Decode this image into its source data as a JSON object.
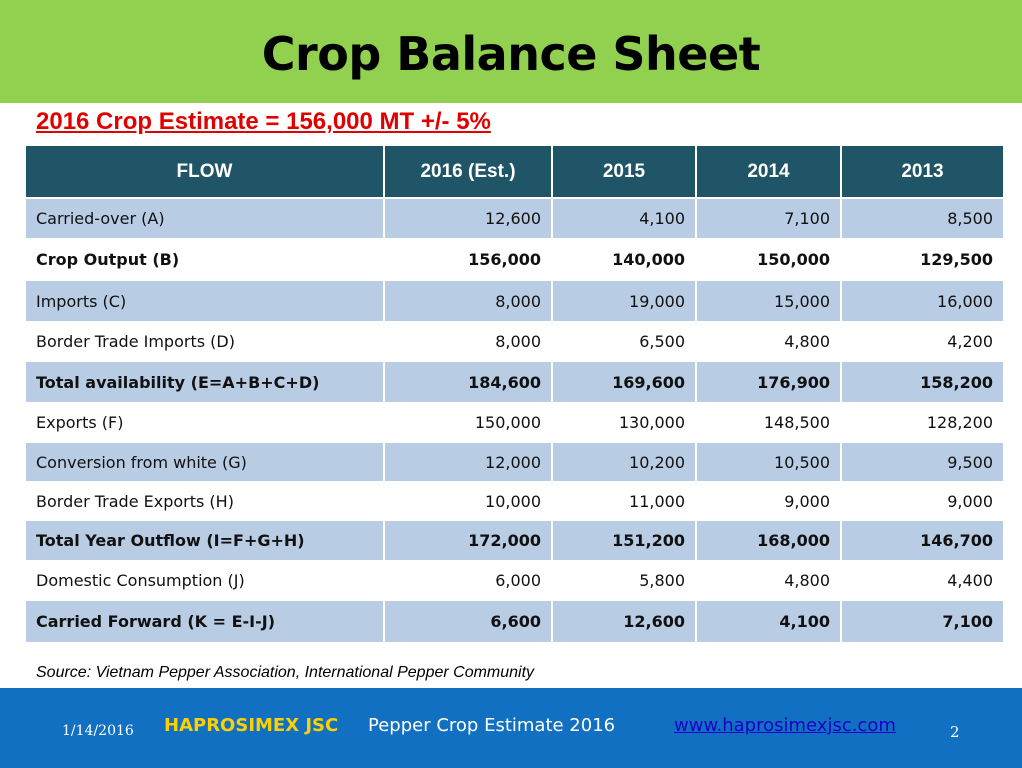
{
  "header": {
    "title": "Crop Balance Sheet"
  },
  "subtitle": "2016 Crop Estimate = 156,000 MT +/- 5%",
  "table": {
    "columns": [
      "FLOW",
      "2016 (Est.)",
      "2015",
      "2014",
      "2013"
    ],
    "rows": [
      {
        "label": "Carried-over   (A)",
        "values": [
          "12,600",
          "4,100",
          "7,100",
          "8,500"
        ],
        "bold": false,
        "shaded": true
      },
      {
        "label": "Crop Output  (B)",
        "values": [
          "156,000",
          "140,000",
          "150,000",
          "129,500"
        ],
        "bold": true,
        "shaded": false
      },
      {
        "label": "Imports (C)",
        "values": [
          "8,000",
          "19,000",
          "15,000",
          "16,000"
        ],
        "bold": false,
        "shaded": true
      },
      {
        "label": "Border Trade Imports (D)",
        "values": [
          "8,000",
          "6,500",
          "4,800",
          "4,200"
        ],
        "bold": false,
        "shaded": false
      },
      {
        "label": "Total availability (E=A+B+C+D)",
        "values": [
          "184,600",
          "169,600",
          "176,900",
          "158,200"
        ],
        "bold": true,
        "shaded": true
      },
      {
        "label": "Exports (F)",
        "values": [
          "150,000",
          "130,000",
          "148,500",
          "128,200"
        ],
        "bold": false,
        "shaded": false
      },
      {
        "label": "Conversion from white (G)",
        "values": [
          "12,000",
          "10,200",
          "10,500",
          "9,500"
        ],
        "bold": false,
        "shaded": true
      },
      {
        "label": "Border Trade  Exports (H)",
        "values": [
          "10,000",
          "11,000",
          "9,000",
          "9,000"
        ],
        "bold": false,
        "shaded": false
      },
      {
        "label": "Total Year Outflow (I=F+G+H)",
        "values": [
          "172,000",
          "151,200",
          "168,000",
          "146,700"
        ],
        "bold": true,
        "shaded": true
      },
      {
        "label": "Domestic Consumption (J)",
        "values": [
          "6,000",
          "5,800",
          "4,800",
          "4,400"
        ],
        "bold": false,
        "shaded": false
      },
      {
        "label": "Carried Forward (K = E-I-J)",
        "values": [
          "6,600",
          "12,600",
          "4,100",
          "7,100"
        ],
        "bold": true,
        "shaded": true
      }
    ]
  },
  "source": "Source: Vietnam Pepper Association, International Pepper Community",
  "footer": {
    "date": "1/14/2016",
    "company": "HAPROSIMEX JSC",
    "title": "Pepper Crop Estimate 2016",
    "link": "www.haprosimexjsc.com",
    "page": "2"
  },
  "colors": {
    "header_bg": "#92d050",
    "table_header_bg": "#1f5566",
    "row_shade": "#b8cce4",
    "subtitle": "#e00000",
    "footer_bg": "#1170c1",
    "company": "#ffd000"
  }
}
